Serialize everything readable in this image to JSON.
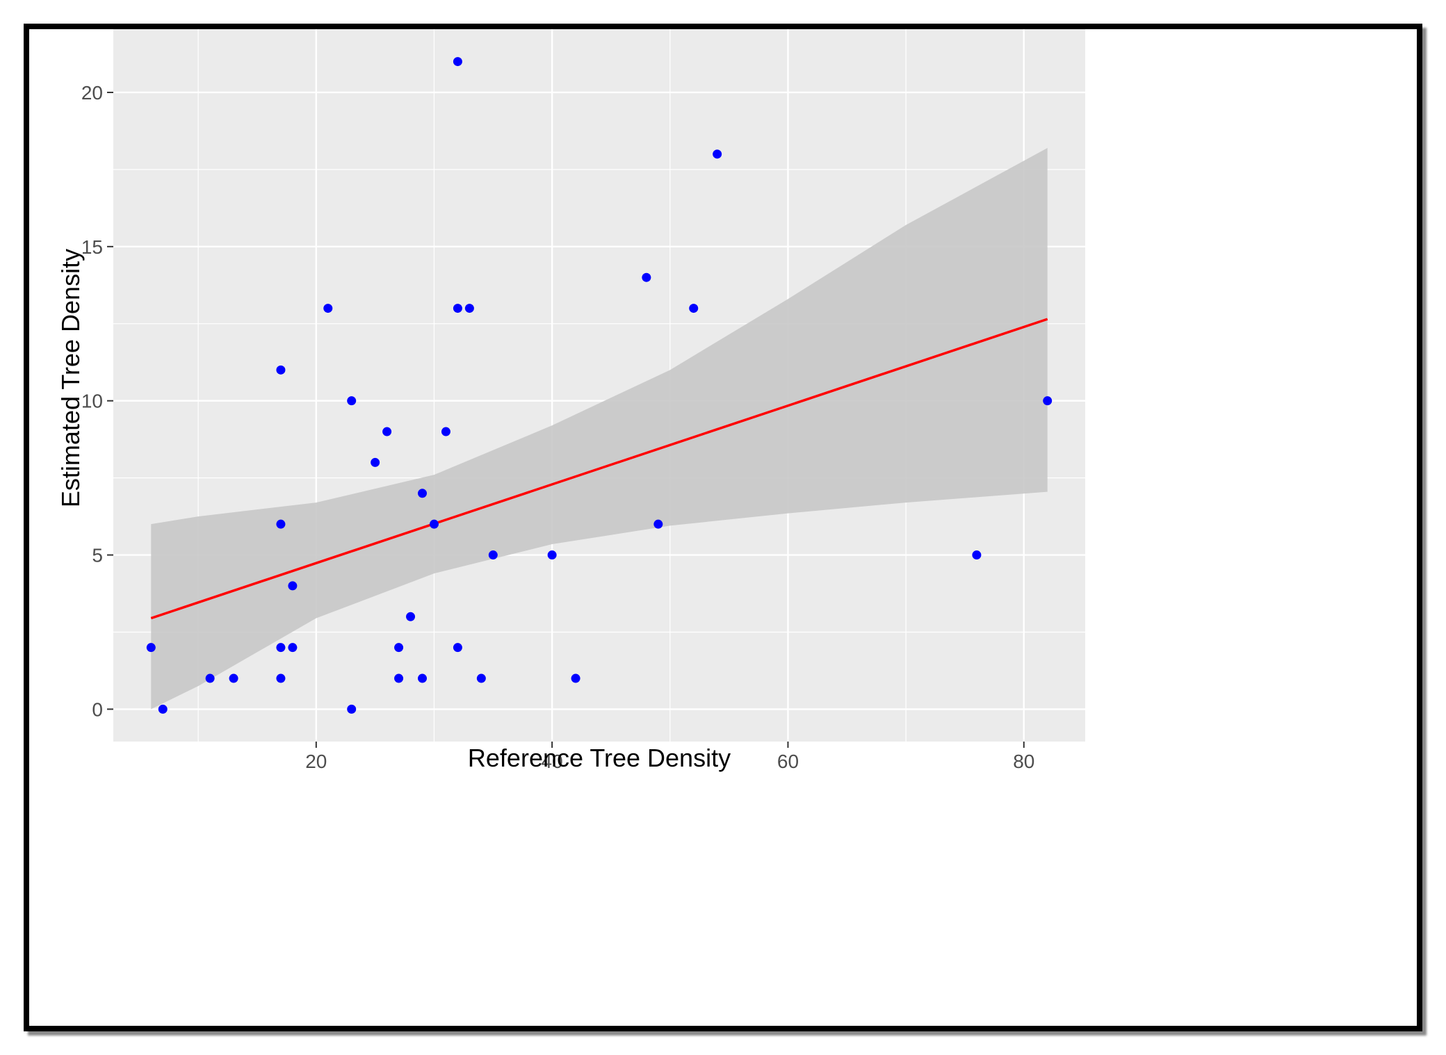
{
  "chart_data": {
    "type": "scatter",
    "xlabel": "Reference Tree Density",
    "ylabel": "Estimated Tree Density",
    "xlim": [
      2.8,
      85.2
    ],
    "ylim": [
      -1.05,
      22.05
    ],
    "x_ticks": [
      20,
      40,
      60,
      80
    ],
    "y_ticks": [
      0,
      5,
      10,
      15,
      20
    ],
    "x_minor": [
      10,
      30,
      50,
      70
    ],
    "y_minor": [
      2.5,
      7.5,
      12.5,
      17.5
    ],
    "grid": true,
    "series": [
      {
        "points": [
          {
            "x": 6,
            "y": 2
          },
          {
            "x": 7,
            "y": 0
          },
          {
            "x": 11,
            "y": 1
          },
          {
            "x": 13,
            "y": 1
          },
          {
            "x": 17,
            "y": 11
          },
          {
            "x": 17,
            "y": 6
          },
          {
            "x": 17,
            "y": 2
          },
          {
            "x": 17,
            "y": 1
          },
          {
            "x": 18,
            "y": 4
          },
          {
            "x": 18,
            "y": 2
          },
          {
            "x": 21,
            "y": 13
          },
          {
            "x": 23,
            "y": 10
          },
          {
            "x": 23,
            "y": 0
          },
          {
            "x": 25,
            "y": 8
          },
          {
            "x": 26,
            "y": 9
          },
          {
            "x": 27,
            "y": 2
          },
          {
            "x": 27,
            "y": 1
          },
          {
            "x": 28,
            "y": 3
          },
          {
            "x": 29,
            "y": 7
          },
          {
            "x": 29,
            "y": 1
          },
          {
            "x": 30,
            "y": 6
          },
          {
            "x": 31,
            "y": 9
          },
          {
            "x": 32,
            "y": 21
          },
          {
            "x": 32,
            "y": 13
          },
          {
            "x": 32,
            "y": 2
          },
          {
            "x": 33,
            "y": 13
          },
          {
            "x": 34,
            "y": 1
          },
          {
            "x": 35,
            "y": 5
          },
          {
            "x": 40,
            "y": 5
          },
          {
            "x": 42,
            "y": 1
          },
          {
            "x": 48,
            "y": 14
          },
          {
            "x": 49,
            "y": 6
          },
          {
            "x": 52,
            "y": 13
          },
          {
            "x": 54,
            "y": 18
          },
          {
            "x": 76,
            "y": 5
          },
          {
            "x": 82,
            "y": 10
          }
        ]
      }
    ],
    "fit_line": {
      "x": [
        6,
        82
      ],
      "y": [
        2.95,
        12.65
      ]
    },
    "confidence_band": {
      "x": [
        6,
        10,
        20,
        30,
        40,
        50,
        60,
        70,
        82
      ],
      "lower": [
        0.0,
        0.75,
        2.95,
        4.4,
        5.35,
        5.95,
        6.35,
        6.7,
        7.05
      ],
      "upper": [
        6.0,
        6.25,
        6.7,
        7.6,
        9.2,
        11.0,
        13.3,
        15.7,
        18.2
      ]
    },
    "colors": {
      "panel": "#ebebeb",
      "grid": "#ffffff",
      "points": "#0000ff",
      "line": "#ff0000",
      "band": "#c8c8c8"
    }
  }
}
